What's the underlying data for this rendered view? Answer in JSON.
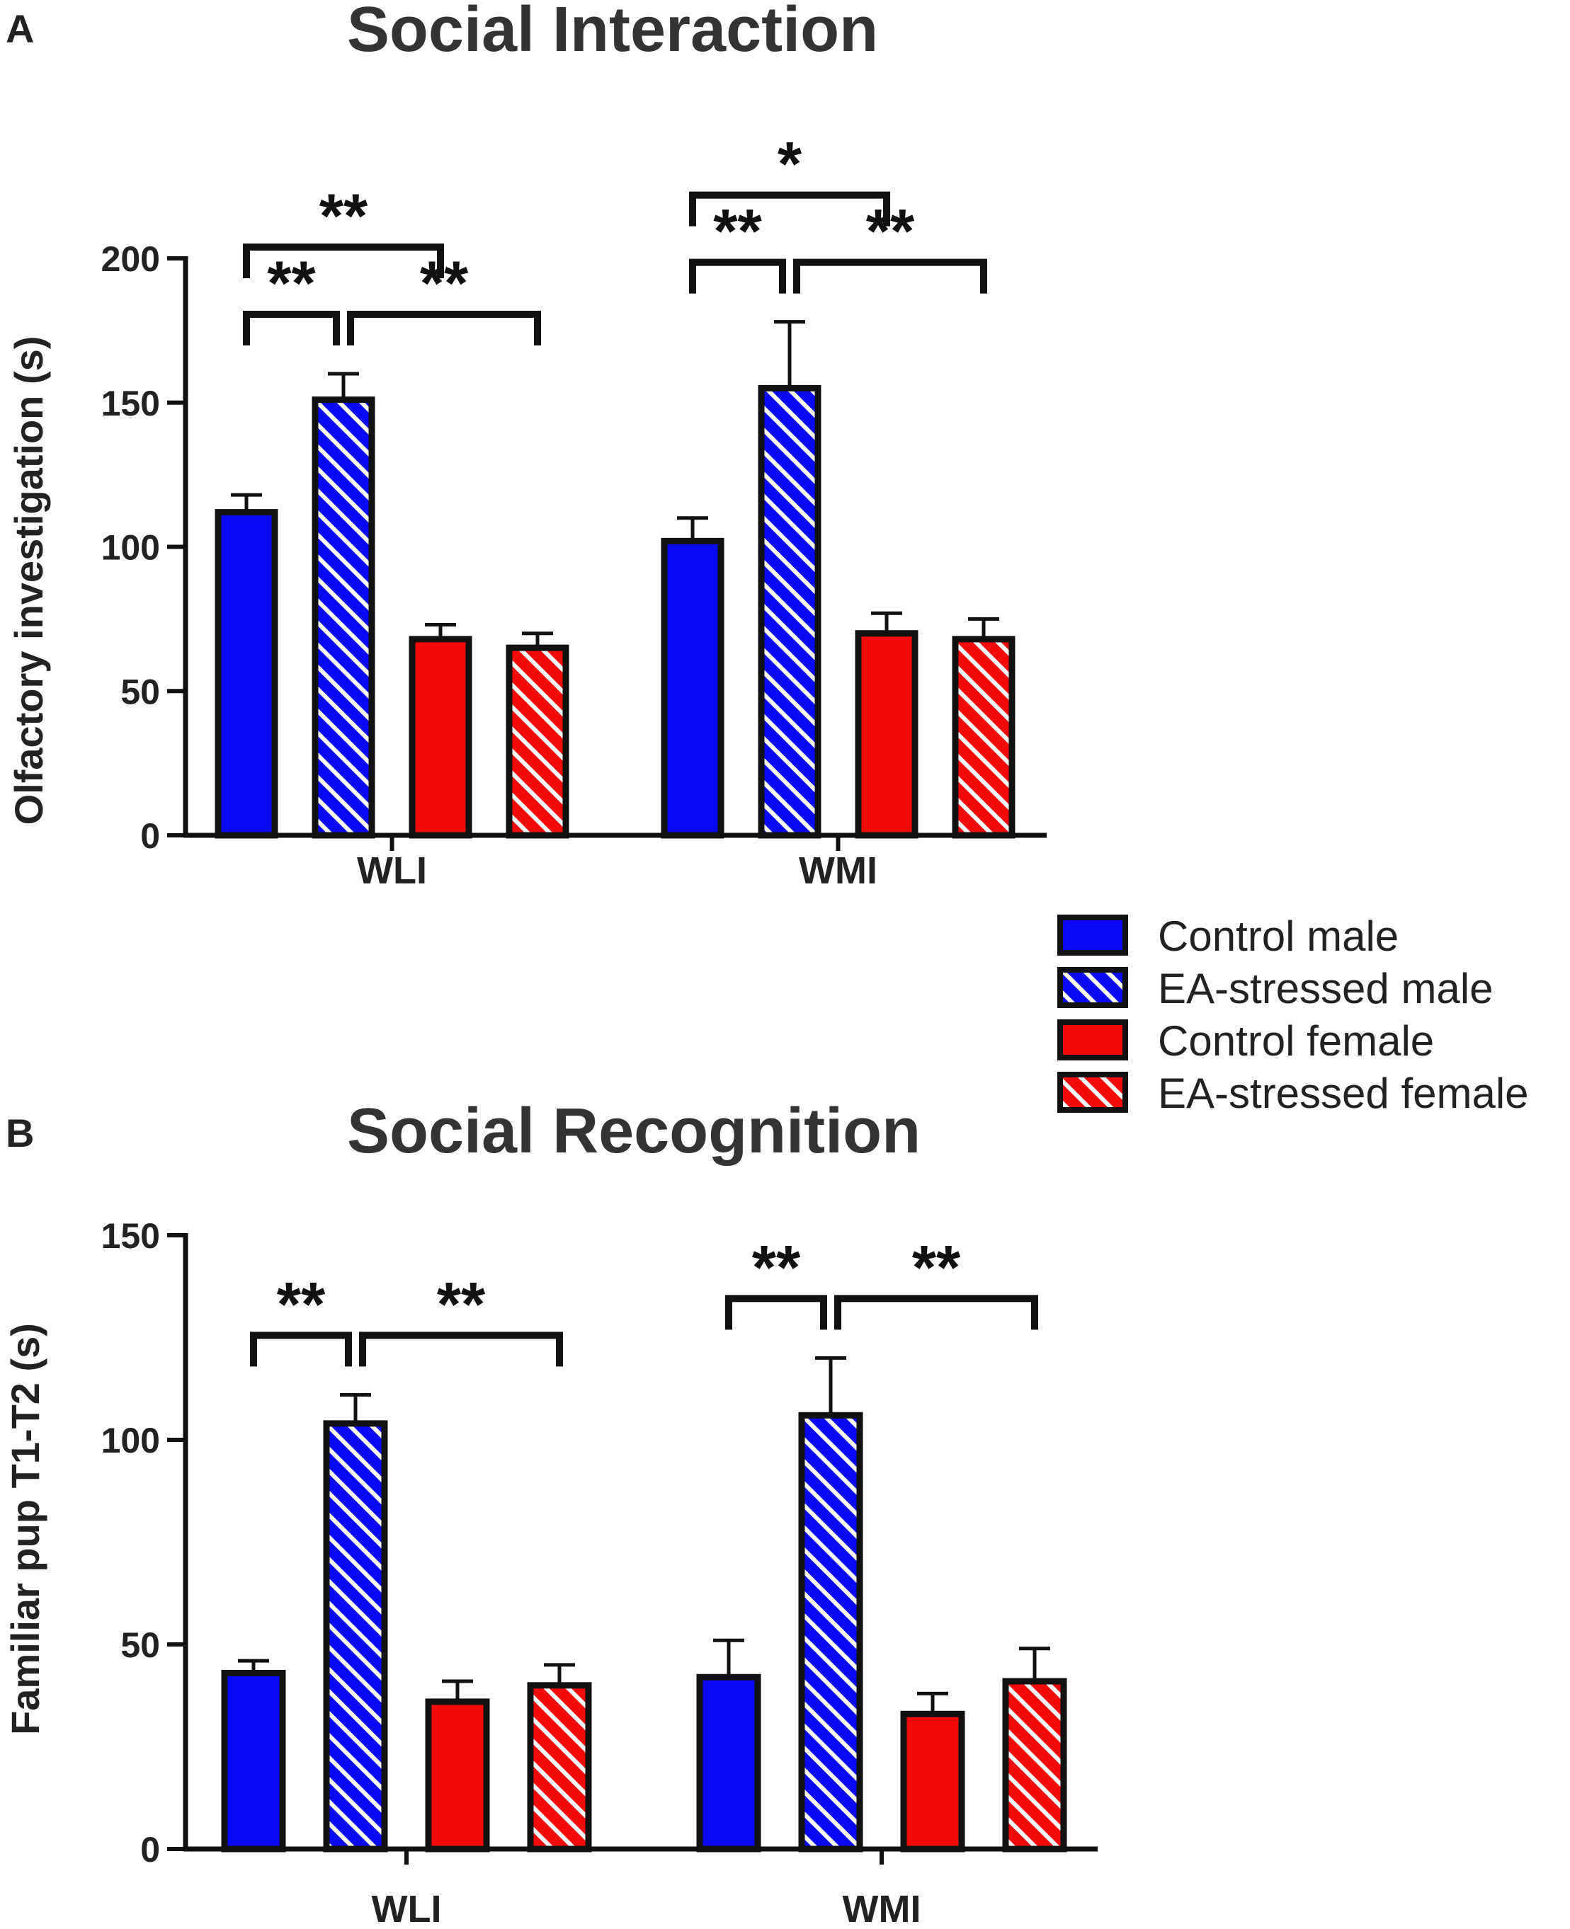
{
  "legend": {
    "entries": [
      {
        "label": "Control male",
        "color": "#0a08f5",
        "hatched": false
      },
      {
        "label": "EA-stressed male",
        "color": "#0a08f5",
        "hatched": true
      },
      {
        "label": "Control female",
        "color": "#f50a0a",
        "hatched": false
      },
      {
        "label": "EA-stressed female",
        "color": "#f50a0a",
        "hatched": true
      }
    ]
  },
  "chart_data": [
    {
      "panel_label": "A",
      "type": "bar",
      "title": "Social Interaction",
      "xlabel": "",
      "ylabel": "Olfactory investigation  (s)",
      "ylim": [
        0,
        200
      ],
      "yticks": [
        0,
        50,
        100,
        150,
        200
      ],
      "categories": [
        "WLI",
        "WMI"
      ],
      "series": [
        {
          "name": "Control male",
          "values": [
            112,
            102
          ],
          "errors": [
            6,
            8
          ]
        },
        {
          "name": "EA-stressed male",
          "values": [
            151,
            155
          ],
          "errors": [
            9,
            23
          ]
        },
        {
          "name": "Control female",
          "values": [
            68,
            70
          ],
          "errors": [
            5,
            7
          ]
        },
        {
          "name": "EA-stressed female",
          "values": [
            65,
            68
          ],
          "errors": [
            5,
            7
          ]
        }
      ],
      "significance": [
        {
          "category": "WLI",
          "from": 0,
          "to": 1,
          "label": "**",
          "level": 1
        },
        {
          "category": "WLI",
          "from": 1,
          "to": 3,
          "label": "**",
          "level": 1
        },
        {
          "category": "WLI",
          "from": 0,
          "to": 2,
          "label": "**",
          "level": 2
        },
        {
          "category": "WMI",
          "from": 0,
          "to": 1,
          "label": "**",
          "level": 1
        },
        {
          "category": "WMI",
          "from": 1,
          "to": 3,
          "label": "**",
          "level": 1
        },
        {
          "category": "WMI",
          "from": 0,
          "to": 2,
          "label": "*",
          "level": 2
        }
      ]
    },
    {
      "panel_label": "B",
      "type": "bar",
      "title": "Social Recognition",
      "xlabel": "",
      "ylabel": "Familiar pup T1-T2 (s)",
      "ylim": [
        0,
        150
      ],
      "yticks": [
        0,
        50,
        100,
        150
      ],
      "categories": [
        "WLI",
        "WMI"
      ],
      "series": [
        {
          "name": "Control male",
          "values": [
            43,
            42
          ],
          "errors": [
            3,
            9
          ]
        },
        {
          "name": "EA-stressed male",
          "values": [
            104,
            106
          ],
          "errors": [
            7,
            14
          ]
        },
        {
          "name": "Control female",
          "values": [
            36,
            33
          ],
          "errors": [
            5,
            5
          ]
        },
        {
          "name": "EA-stressed female",
          "values": [
            40,
            41
          ],
          "errors": [
            5,
            8
          ]
        }
      ],
      "significance": [
        {
          "category": "WLI",
          "from": 0,
          "to": 1,
          "label": "**",
          "level": 1
        },
        {
          "category": "WLI",
          "from": 1,
          "to": 3,
          "label": "**",
          "level": 1
        },
        {
          "category": "WMI",
          "from": 0,
          "to": 1,
          "label": "**",
          "level": 1
        },
        {
          "category": "WMI",
          "from": 1,
          "to": 3,
          "label": "**",
          "level": 1
        }
      ]
    }
  ]
}
